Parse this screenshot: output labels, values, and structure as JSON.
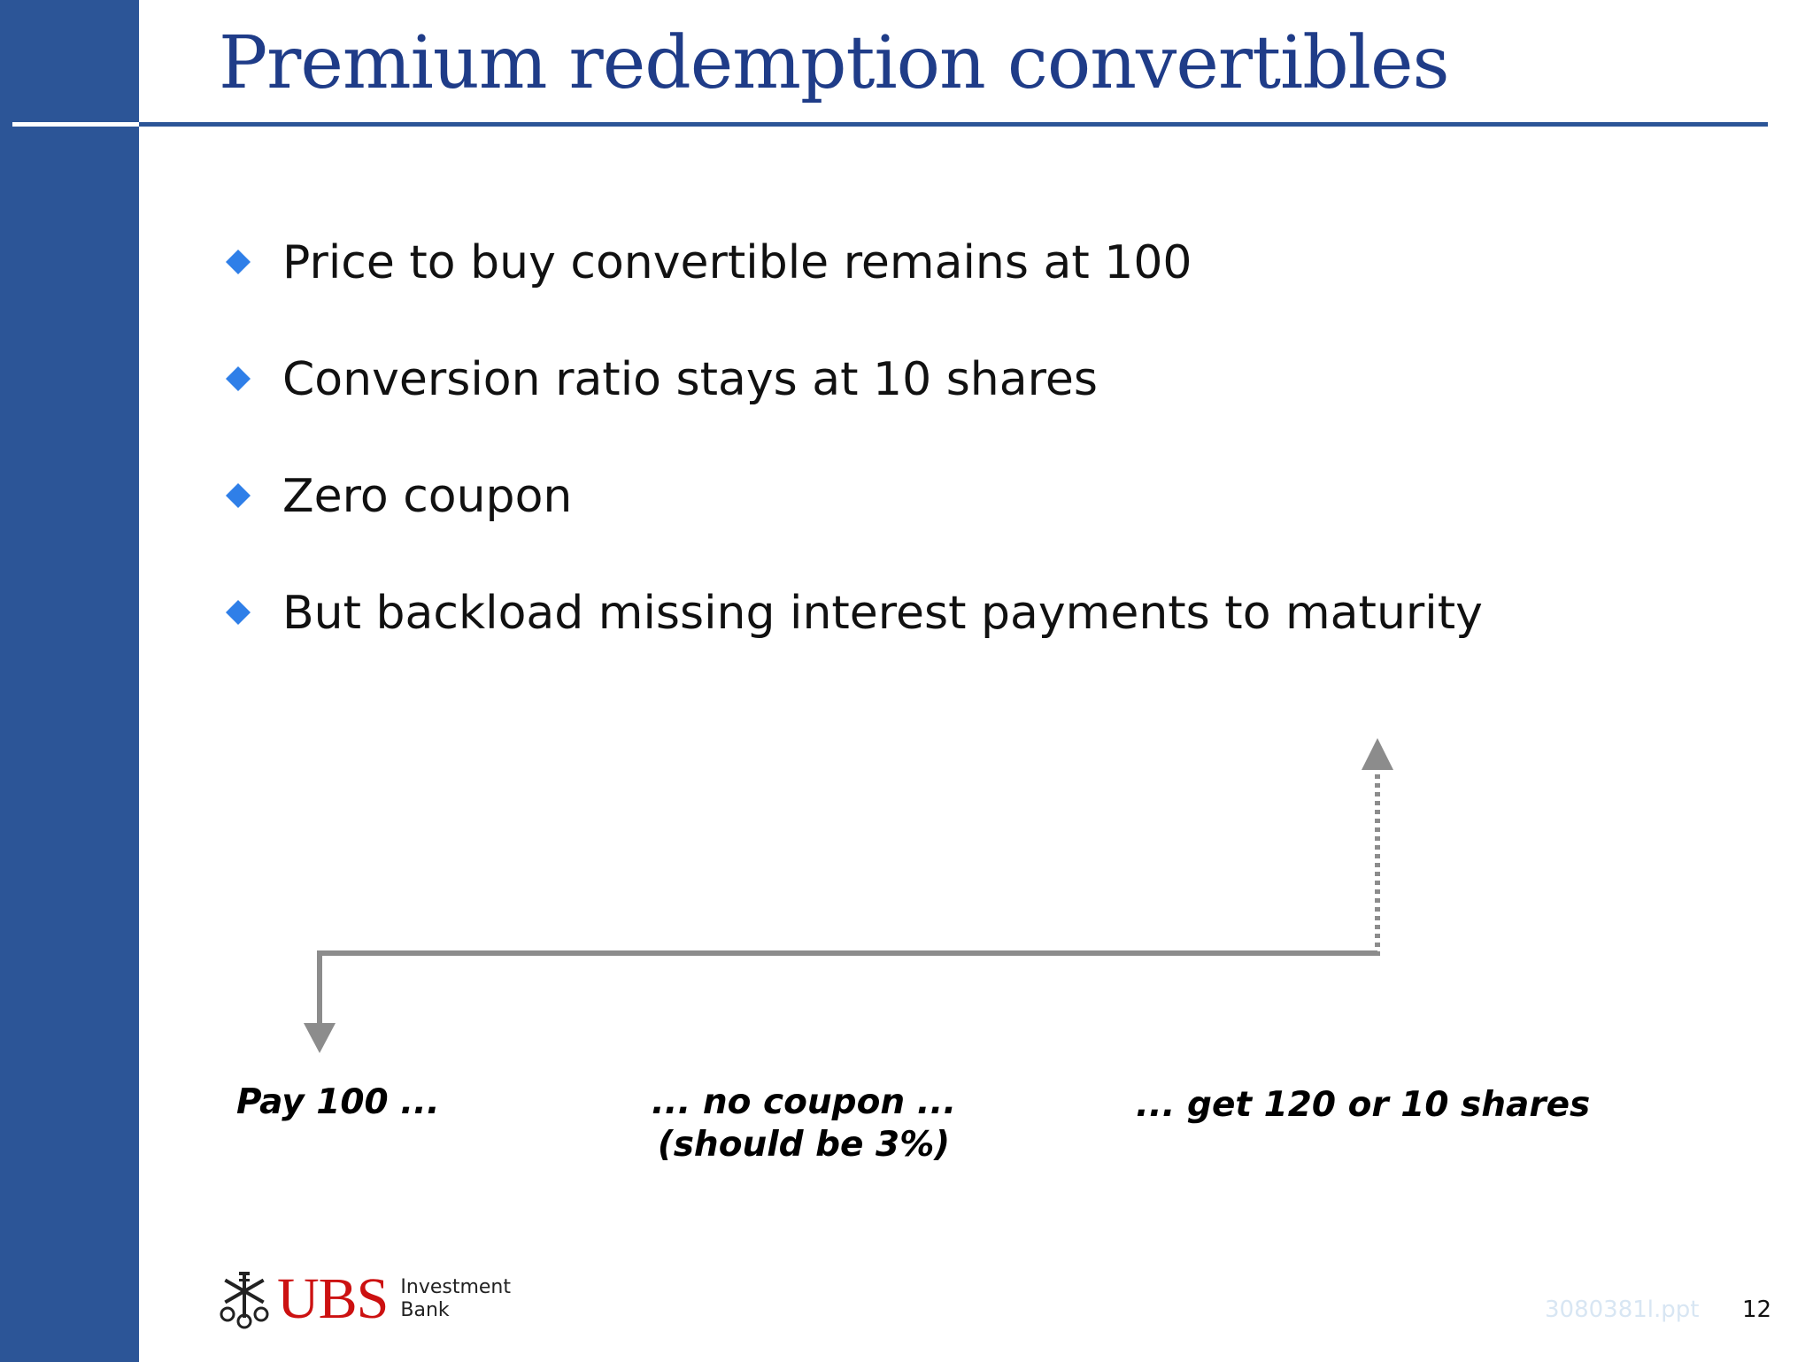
{
  "title": "Premium redemption convertibles",
  "bullets": [
    "Price to buy convertible remains at 100",
    "Conversion ratio stays at 10 shares",
    "Zero coupon",
    "But backload missing interest payments to maturity"
  ],
  "timeline": {
    "start_label": "Pay 100 ...",
    "middle_label_line1": "... no coupon ...",
    "middle_label_line2": "(should be 3%)",
    "end_label": "... get 120 or 10 shares"
  },
  "footer": {
    "logo_name": "UBS",
    "logo_division_line1": "Investment",
    "logo_division_line2": "Bank",
    "file_ref": "3080381l.ppt",
    "page_number": "12"
  },
  "colors": {
    "brand_blue": "#2c5597",
    "title_blue": "#1f3c88",
    "bullet_blue": "#2f7fe8",
    "arrow_grey": "#8c8c8c",
    "logo_red": "#cc1111"
  }
}
